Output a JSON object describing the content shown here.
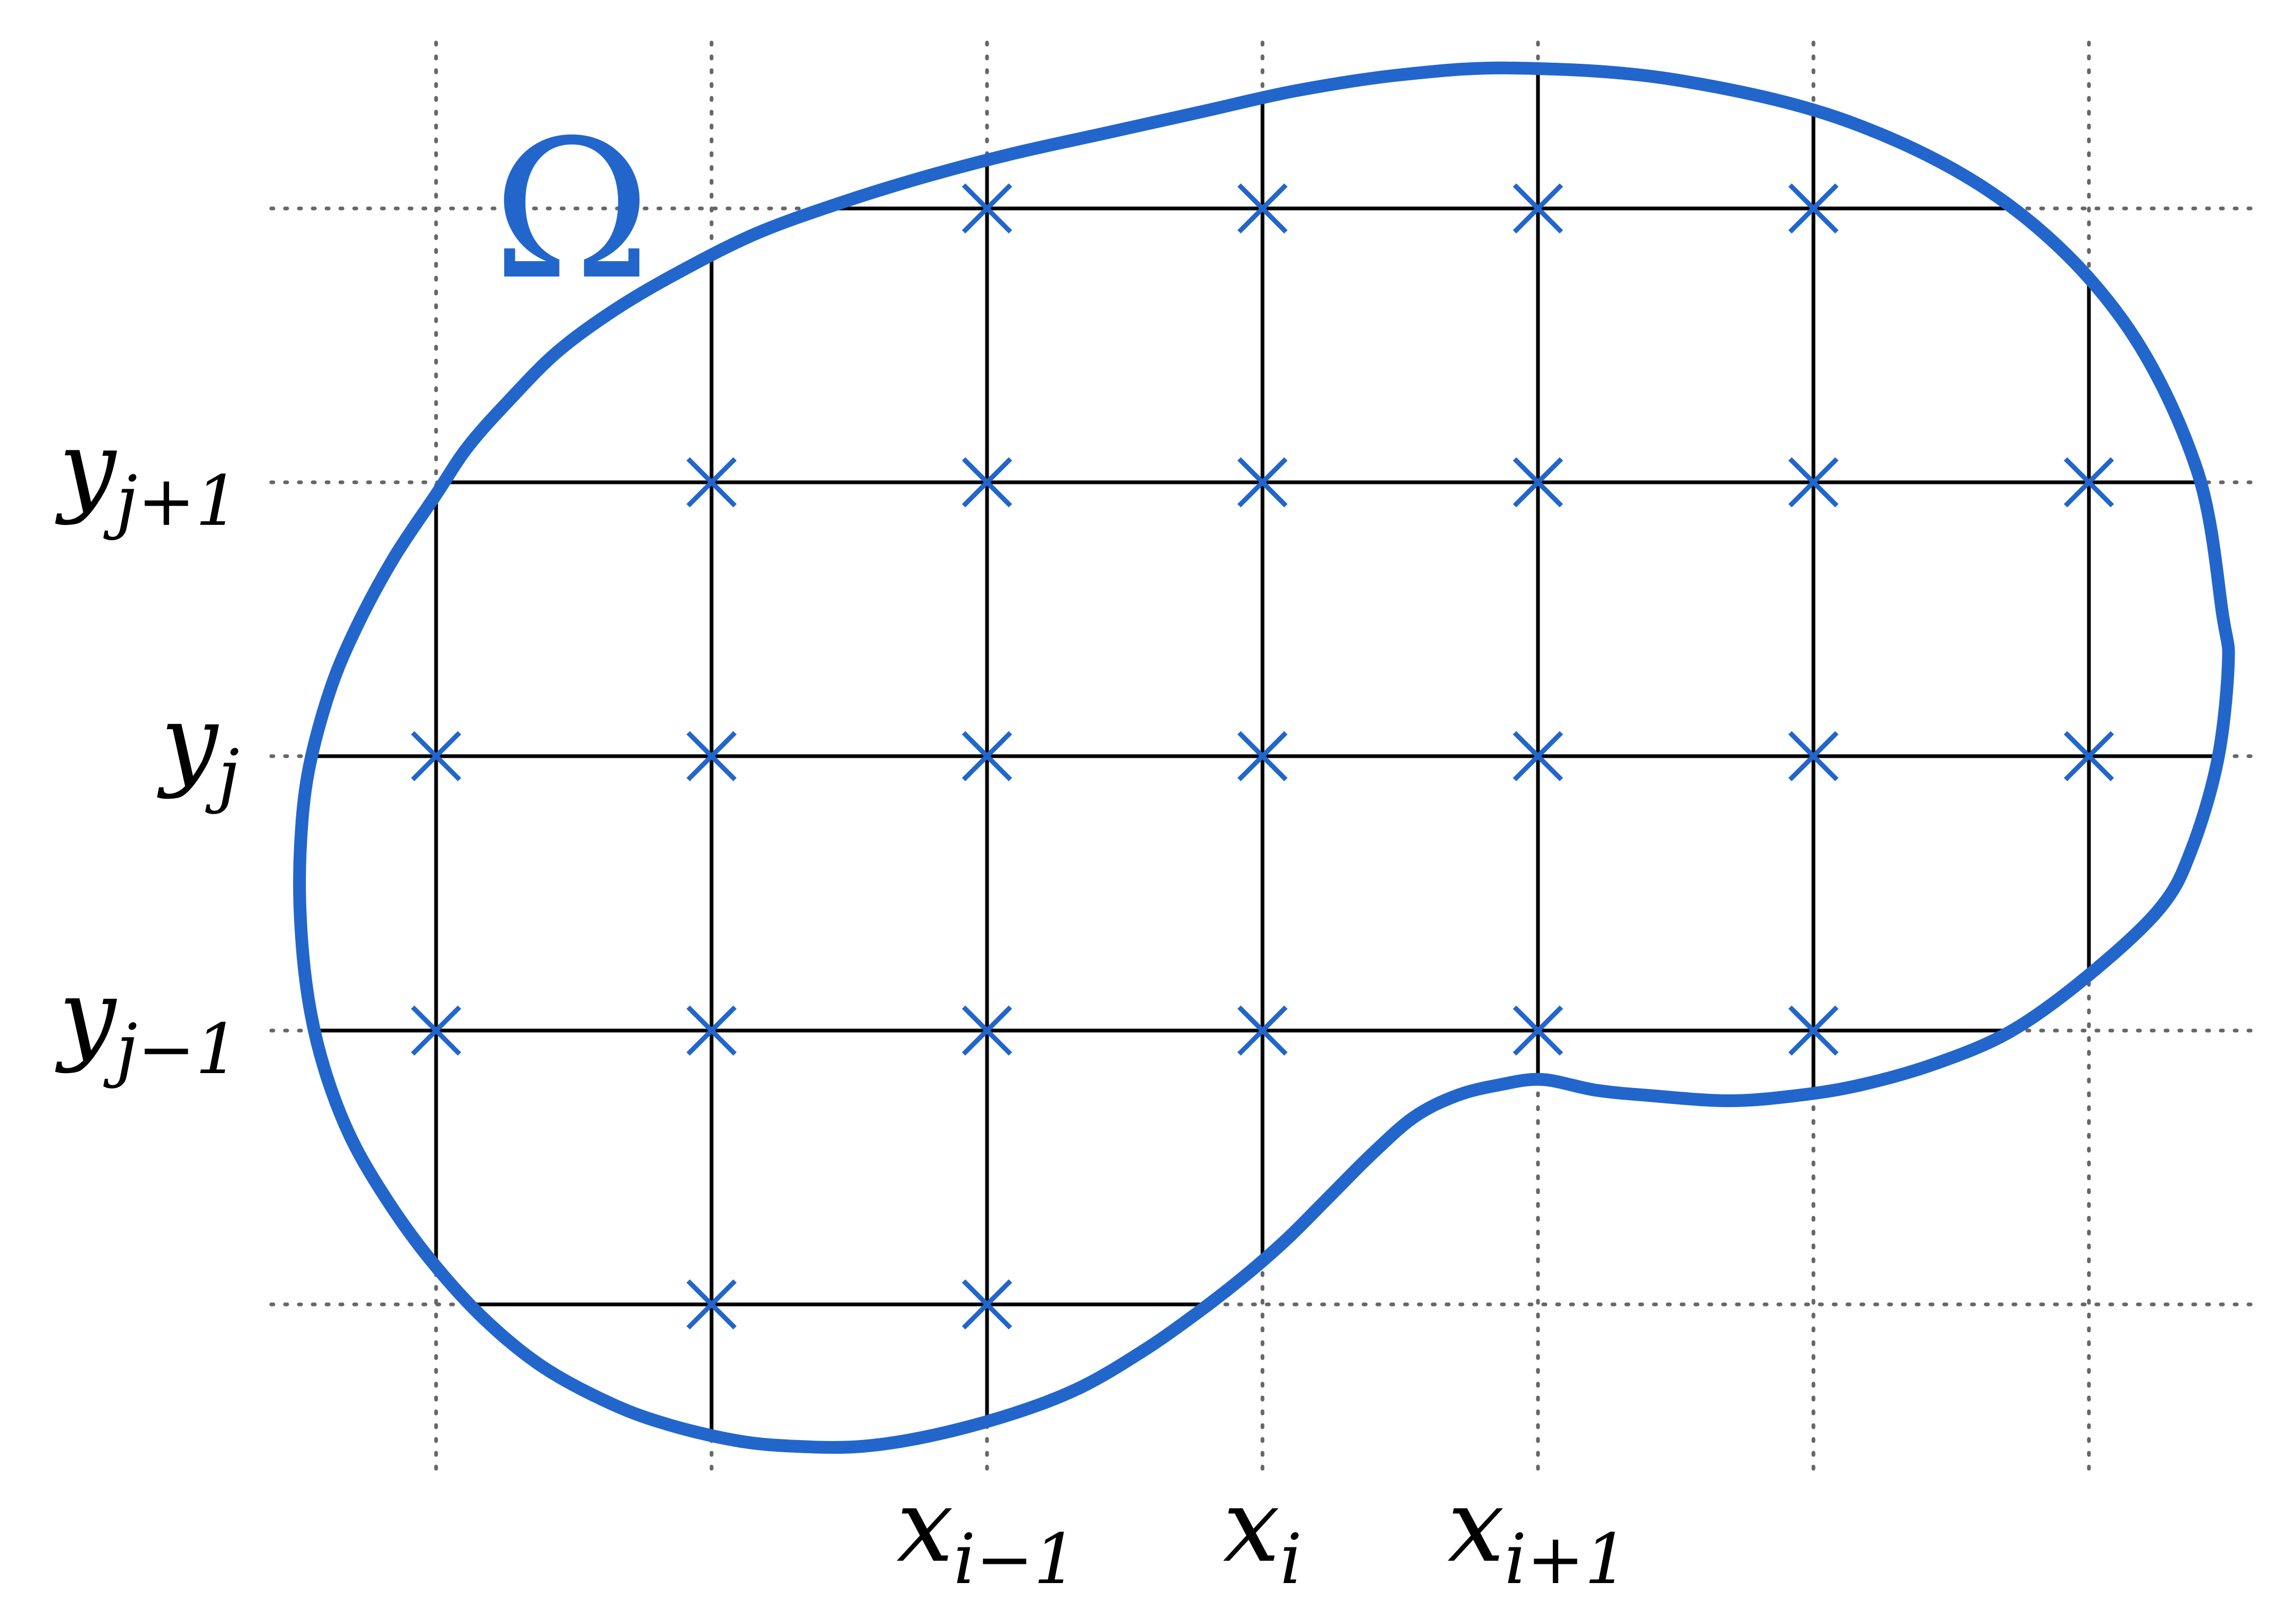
{
  "diagram": {
    "domain_label": "Ω",
    "x_labels": [
      {
        "base": "x",
        "sub": "i−1"
      },
      {
        "base": "x",
        "sub": "i"
      },
      {
        "base": "x",
        "sub": "i+1"
      }
    ],
    "y_labels": [
      {
        "base": "y",
        "sub": "j+1"
      },
      {
        "base": "y",
        "sub": "j"
      },
      {
        "base": "y",
        "sub": "j−1"
      }
    ],
    "colors": {
      "boundary": "#2266cc",
      "markers": "#2266cc",
      "grid_solid": "#000000",
      "grid_dotted": "#666666"
    }
  }
}
